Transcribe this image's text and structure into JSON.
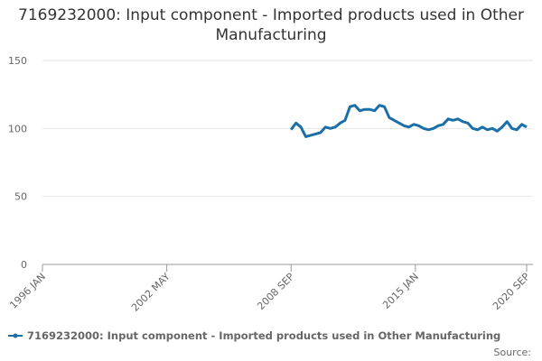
{
  "chart_data": {
    "type": "line",
    "title": "7169232000: Input component - Imported products used in Other Manufacturing",
    "x": [
      "2008-09",
      "2008-12",
      "2009-03",
      "2009-06",
      "2009-09",
      "2009-12",
      "2010-03",
      "2010-06",
      "2010-09",
      "2010-12",
      "2011-03",
      "2011-06",
      "2011-09",
      "2011-12",
      "2012-03",
      "2012-06",
      "2012-09",
      "2012-12",
      "2013-03",
      "2013-06",
      "2013-09",
      "2013-12",
      "2014-03",
      "2014-06",
      "2014-09",
      "2014-12",
      "2015-03",
      "2015-06",
      "2015-09",
      "2015-12",
      "2016-03",
      "2016-06",
      "2016-09",
      "2016-12",
      "2017-03",
      "2017-06",
      "2017-09",
      "2017-12",
      "2018-03",
      "2018-06",
      "2018-09",
      "2018-12",
      "2019-03",
      "2019-06",
      "2019-09",
      "2019-12",
      "2020-03",
      "2020-06",
      "2020-09"
    ],
    "series": [
      {
        "name": "7169232000: Input component - Imported products used in Other Manufacturing",
        "color": "#1a6fa8",
        "values": [
          99,
          104,
          101,
          94,
          95,
          96,
          97,
          101,
          100,
          101,
          104,
          106,
          116,
          117,
          113,
          114,
          114,
          113,
          117,
          116,
          108,
          106,
          104,
          102,
          101,
          103,
          102,
          100,
          99,
          100,
          102,
          103,
          107,
          106,
          107,
          105,
          104,
          100,
          99,
          101,
          99,
          100,
          98,
          101,
          105,
          100,
          99,
          103,
          101
        ]
      }
    ],
    "xlim": [
      "1996-01",
      "2020-09"
    ],
    "xticks": [
      {
        "value": "1996-01",
        "label": "1996 JAN"
      },
      {
        "value": "2002-05",
        "label": "2002 MAY"
      },
      {
        "value": "2008-09",
        "label": "2008 SEP"
      },
      {
        "value": "2015-01",
        "label": "2015 JAN"
      },
      {
        "value": "2020-09",
        "label": "2020 SEP"
      }
    ],
    "ylim": [
      0,
      150
    ],
    "yticks": [
      0,
      50,
      100,
      150
    ],
    "grid": true,
    "legend": "bottom",
    "source": "Source:"
  }
}
